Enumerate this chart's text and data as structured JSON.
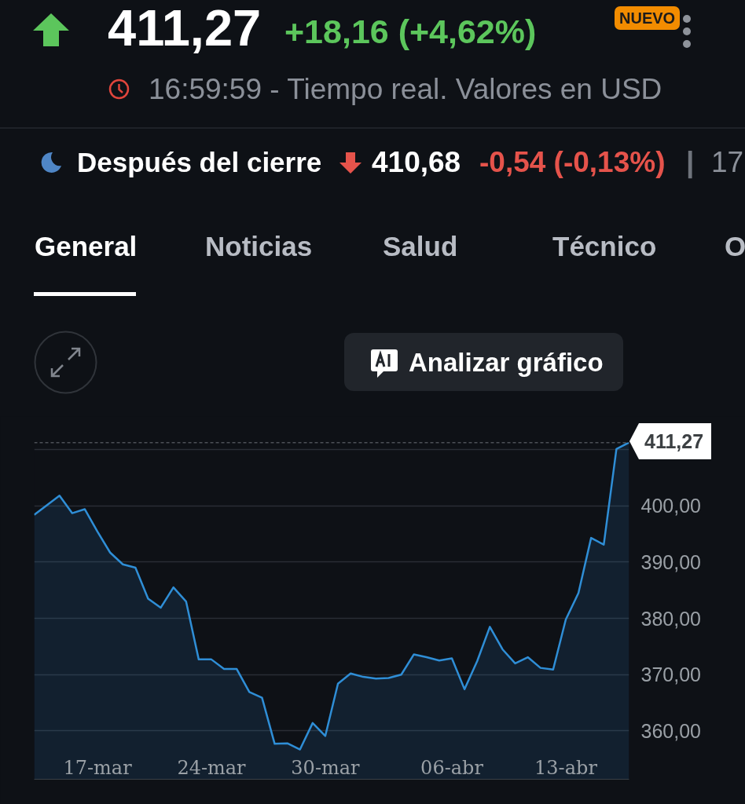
{
  "chart_data": {
    "type": "area",
    "title": "411,27",
    "subtitle": "+18,16 (+4,62%)",
    "annotations": [
      "16:59:59 - Tiempo real. Valores en USD",
      "Después del cierre",
      "410,68",
      "-0,54 (-0,13%)",
      "|",
      "17",
      "NUEVO",
      "General",
      "Noticias",
      "Salud",
      "Técnico",
      "O",
      "Analizar gráfico"
    ],
    "categories": [
      null,
      null,
      null,
      null,
      null,
      "17-mar",
      null,
      null,
      null,
      null,
      null,
      null,
      null,
      null,
      "24-mar",
      null,
      null,
      null,
      null,
      null,
      null,
      null,
      null,
      "30-mar",
      null,
      null,
      null,
      null,
      null,
      null,
      null,
      null,
      null,
      "06-abr",
      null,
      null,
      null,
      null,
      null,
      null,
      null,
      null,
      "13-abr",
      null,
      null,
      null,
      null,
      null
    ],
    "series": [
      {
        "color": "#2f8ed6",
        "values": [
          398.4,
          400.1,
          401.8,
          398.7,
          399.4,
          395.4,
          391.7,
          389.6,
          389.0,
          383.5,
          381.9,
          385.5,
          383.0,
          372.7,
          372.7,
          371.0,
          371.0,
          366.9,
          365.9,
          357.7,
          357.8,
          356.7,
          361.4,
          359.1,
          368.4,
          370.2,
          369.6,
          369.3,
          369.4,
          370.0,
          373.6,
          373.1,
          372.5,
          372.9,
          367.4,
          372.4,
          378.5,
          374.5,
          372.0,
          373.1,
          371.2,
          370.9,
          379.8,
          384.5,
          394.3,
          393.1,
          410.1,
          411.27
        ]
      }
    ],
    "ylim": [
      351.4,
      411.27
    ],
    "yticks": [
      {
        "value": 360,
        "label": "360,00"
      },
      {
        "value": 370,
        "label": "370,00"
      },
      {
        "value": 380,
        "label": "380,00"
      },
      {
        "value": 390,
        "label": "390,00"
      },
      {
        "value": 400,
        "label": "400,00"
      },
      {
        "value": 410,
        "label": null
      }
    ],
    "ref_lines": [
      {
        "axis": "y",
        "value": 411.27,
        "label": "411,27",
        "color": "#8a8f96",
        "line_style": "dashed"
      }
    ],
    "grid": "y"
  }
}
